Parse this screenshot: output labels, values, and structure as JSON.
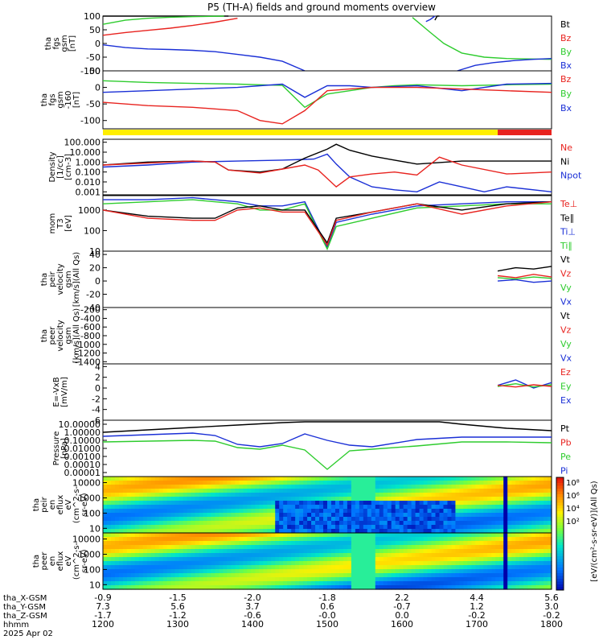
{
  "title": "P5 (TH-A) fields and ground moments overview",
  "colors": {
    "black": "#000000",
    "red": "#e8231f",
    "green": "#2ecc2e",
    "blue": "#1a2fd6",
    "yellow": "#ffee00"
  },
  "chart_data": [
    {
      "type": "line",
      "ylabel": [
        "tha",
        "fgs",
        "gsm",
        "[nT]"
      ],
      "ylim": [
        -100,
        100
      ],
      "ticks": [
        "100",
        "50",
        "0",
        "-50",
        "-100"
      ],
      "tick_values": [
        100,
        50,
        0,
        -50,
        -100
      ],
      "legend": [
        "Bt",
        "Bz",
        "By",
        "Bx"
      ],
      "legend_colors": [
        "black",
        "red",
        "green",
        "blue"
      ],
      "series": [
        {
          "color": "black",
          "x": [
            0,
            0.04,
            0.1,
            0.2,
            0.28
          ],
          "y": [
            100,
            104,
            105,
            106,
            107
          ]
        },
        {
          "color": "red",
          "x": [
            0,
            0.05,
            0.1,
            0.15,
            0.2,
            0.25,
            0.3
          ],
          "y": [
            30,
            40,
            48,
            56,
            66,
            78,
            92
          ]
        },
        {
          "color": "green",
          "x": [
            0,
            0.05,
            0.1,
            0.15,
            0.2,
            0.27
          ],
          "y": [
            70,
            85,
            92,
            96,
            98,
            100
          ]
        },
        {
          "color": "blue",
          "x": [
            0,
            0.05,
            0.1,
            0.15,
            0.2,
            0.25,
            0.3,
            0.35,
            0.4,
            0.45
          ],
          "y": [
            -5,
            -15,
            -20,
            -22,
            -25,
            -30,
            -40,
            -50,
            -65,
            -100
          ]
        },
        {
          "color": "green",
          "x": [
            0.69,
            0.73,
            0.76,
            0.8,
            0.85,
            0.9,
            1
          ],
          "y": [
            95,
            40,
            0,
            -35,
            -50,
            -55,
            -58
          ]
        },
        {
          "color": "blue",
          "x": [
            0.79,
            0.83,
            0.87,
            0.92,
            0.96,
            1
          ],
          "y": [
            -100,
            -80,
            -70,
            -62,
            -58,
            -55
          ]
        },
        {
          "color": "blue",
          "x": [
            0.72,
            0.73,
            0.74
          ],
          "y": [
            80,
            88,
            100
          ]
        },
        {
          "color": "black",
          "x": [
            0.74,
            0.745,
            0.75
          ],
          "y": [
            85,
            100,
            110
          ]
        }
      ]
    },
    {
      "type": "line",
      "ylabel": [
        "tha",
        "fgs",
        "gsm",
        "-160",
        "[nT]"
      ],
      "ylim": [
        -125,
        50
      ],
      "ticks": [
        "50",
        "0",
        "-50",
        "-100"
      ],
      "tick_values": [
        50,
        0,
        -50,
        -100
      ],
      "legend": [
        "Bz",
        "By",
        "Bx"
      ],
      "legend_colors": [
        "red",
        "green",
        "blue"
      ],
      "series": [
        {
          "color": "green",
          "x": [
            0,
            0.1,
            0.2,
            0.3,
            0.35,
            0.4,
            0.45,
            0.5,
            0.55,
            0.6,
            0.65,
            0.7,
            0.8,
            0.9,
            1
          ],
          "y": [
            20,
            15,
            12,
            10,
            8,
            6,
            -60,
            -20,
            -10,
            0,
            5,
            8,
            5,
            8,
            10
          ]
        },
        {
          "color": "blue",
          "x": [
            0,
            0.1,
            0.2,
            0.3,
            0.35,
            0.4,
            0.45,
            0.5,
            0.55,
            0.6,
            0.7,
            0.8,
            0.9,
            1
          ],
          "y": [
            -15,
            -10,
            -5,
            0,
            5,
            10,
            -30,
            5,
            5,
            0,
            5,
            -10,
            10,
            12
          ]
        },
        {
          "color": "red",
          "x": [
            0,
            0.1,
            0.2,
            0.3,
            0.35,
            0.4,
            0.45,
            0.5,
            0.55,
            0.6,
            0.7,
            0.8,
            0.9,
            1
          ],
          "y": [
            -45,
            -55,
            -60,
            -70,
            -100,
            -110,
            -70,
            -10,
            -5,
            0,
            0,
            -5,
            -10,
            -15
          ]
        }
      ]
    },
    {
      "type": "heatmap",
      "bar": [
        [
          "yellow",
          0,
          0.88
        ],
        [
          "red",
          0.88,
          1
        ]
      ]
    },
    {
      "type": "line",
      "ylabel": [
        "Density",
        "[1/cc]",
        "[cm-3]"
      ],
      "ylim": [
        -3.3,
        2.3
      ],
      "log": true,
      "ticks": [
        "100.000",
        "10.000",
        "1.000",
        "0.100",
        "0.010",
        "0.001"
      ],
      "tick_values": [
        2,
        1,
        0,
        -1,
        -2,
        -3
      ],
      "legend": [
        "Ne",
        "Ni",
        "Npot"
      ],
      "legend_colors": [
        "red",
        "black",
        "blue"
      ],
      "series": [
        {
          "color": "blue",
          "x": [
            0,
            0.1,
            0.2,
            0.3,
            0.4,
            0.47,
            0.5,
            0.52,
            0.55,
            0.6,
            0.65,
            0.7,
            0.75,
            0.8,
            0.85,
            0.9,
            1
          ],
          "y": [
            -0.5,
            -0.3,
            0,
            0.1,
            0.2,
            0.3,
            0.8,
            -0.2,
            -1.5,
            -2.5,
            -2.8,
            -3,
            -2,
            -2.5,
            -3,
            -2.5,
            -3
          ]
        },
        {
          "color": "black",
          "x": [
            0,
            0.1,
            0.2,
            0.25,
            0.28,
            0.35,
            0.4,
            0.45,
            0.5,
            0.52,
            0.55,
            0.6,
            0.65,
            0.7,
            0.8,
            0.9,
            1
          ],
          "y": [
            -0.3,
            0,
            0.1,
            0,
            -0.8,
            -1,
            -0.7,
            0.4,
            1.3,
            1.8,
            1.2,
            0.6,
            0.2,
            -0.2,
            0.1,
            0.1,
            0.1
          ]
        },
        {
          "color": "red",
          "x": [
            0,
            0.1,
            0.2,
            0.25,
            0.28,
            0.35,
            0.4,
            0.45,
            0.48,
            0.52,
            0.55,
            0.6,
            0.65,
            0.7,
            0.75,
            0.8,
            0.9,
            1
          ],
          "y": [
            -0.3,
            -0.1,
            0.1,
            0,
            -0.8,
            -1.1,
            -0.7,
            -0.3,
            -0.8,
            -2.5,
            -1.5,
            -1.2,
            -1,
            -1.3,
            0.5,
            -0.3,
            -1.2,
            -1
          ]
        }
      ]
    },
    {
      "type": "line",
      "ylabel": [
        "mom",
        "T3",
        "[eV]"
      ],
      "ylim": [
        1,
        3.7
      ],
      "log": true,
      "ticks": [
        "1000",
        "100",
        "10"
      ],
      "tick_values": [
        3,
        2,
        1
      ],
      "legend": [
        "Te⊥",
        "Te∥",
        "Ti⊥",
        "Ti∥"
      ],
      "legend_colors": [
        "red",
        "black",
        "blue",
        "green"
      ],
      "series": [
        {
          "color": "blue",
          "x": [
            0,
            0.1,
            0.2,
            0.3,
            0.35,
            0.4,
            0.45,
            0.5,
            0.52,
            0.6,
            0.7,
            0.8,
            0.9,
            1
          ],
          "y": [
            3.5,
            3.5,
            3.6,
            3.4,
            3.2,
            3.2,
            3.4,
            1.2,
            2.4,
            2.8,
            3.2,
            3.3,
            3.4,
            3.4
          ]
        },
        {
          "color": "green",
          "x": [
            0,
            0.1,
            0.2,
            0.3,
            0.35,
            0.4,
            0.45,
            0.5,
            0.52,
            0.6,
            0.7,
            0.8,
            0.9,
            1
          ],
          "y": [
            3.3,
            3.4,
            3.5,
            3.3,
            3.0,
            3.0,
            3.3,
            1.1,
            2.2,
            2.6,
            3.1,
            3.2,
            3.3,
            3.3
          ]
        },
        {
          "color": "black",
          "x": [
            0,
            0.1,
            0.2,
            0.25,
            0.3,
            0.35,
            0.4,
            0.45,
            0.5,
            0.52,
            0.6,
            0.7,
            0.8,
            0.9,
            1
          ],
          "y": [
            3.0,
            2.7,
            2.6,
            2.6,
            3.1,
            3.2,
            3.0,
            3.0,
            1.4,
            2.6,
            2.9,
            3.3,
            3.0,
            3.3,
            3.4
          ]
        },
        {
          "color": "red",
          "x": [
            0,
            0.1,
            0.2,
            0.25,
            0.3,
            0.35,
            0.4,
            0.45,
            0.5,
            0.52,
            0.6,
            0.7,
            0.8,
            0.9,
            1
          ],
          "y": [
            3.0,
            2.6,
            2.5,
            2.5,
            3.0,
            3.1,
            2.9,
            2.9,
            1.3,
            2.5,
            2.9,
            3.3,
            2.8,
            3.2,
            3.4
          ]
        }
      ]
    },
    {
      "type": "line",
      "ylabel": [
        "tha",
        "peir",
        "velocity",
        "gsm",
        "[km/s](All Qs)"
      ],
      "ylim": [
        -40,
        45
      ],
      "ticks": [
        "40",
        "20",
        "0",
        "-20",
        "-40"
      ],
      "tick_values": [
        40,
        20,
        0,
        -20,
        -40
      ],
      "legend": [
        "Vt",
        "Vz",
        "Vy",
        "Vx"
      ],
      "legend_colors": [
        "black",
        "red",
        "green",
        "blue"
      ],
      "series": [
        {
          "color": "black",
          "x": [
            0.88,
            0.92,
            0.96,
            1
          ],
          "y": [
            15,
            20,
            18,
            22
          ]
        },
        {
          "color": "blue",
          "x": [
            0.88,
            0.92,
            0.96,
            1
          ],
          "y": [
            0,
            2,
            -2,
            0
          ]
        },
        {
          "color": "green",
          "x": [
            0.88,
            0.92,
            0.96,
            1
          ],
          "y": [
            5,
            3,
            6,
            4
          ]
        },
        {
          "color": "red",
          "x": [
            0.88,
            0.92,
            0.96,
            1
          ],
          "y": [
            8,
            5,
            10,
            6
          ]
        }
      ]
    },
    {
      "type": "line",
      "ylabel": [
        "tha",
        "peer",
        "velocity",
        "gsm",
        "[km/s](All Qs)"
      ],
      "ylim": [
        -1450,
        -150
      ],
      "ticks": [
        "-200",
        "-400",
        "-600",
        "-800",
        "-1000",
        "-1200",
        "-1400"
      ],
      "tick_values": [
        -200,
        -400,
        -600,
        -800,
        -1000,
        -1200,
        -1400
      ],
      "legend": [
        "Vt",
        "Vz",
        "Vy",
        "Vx"
      ],
      "legend_colors": [
        "black",
        "red",
        "green",
        "blue"
      ],
      "series": []
    },
    {
      "type": "line",
      "ylabel": [
        "E=-VxB",
        "[mV/m]"
      ],
      "ylim": [
        -6,
        4.5
      ],
      "ticks": [
        "4",
        "2",
        "0",
        "-2",
        "-4",
        "-6"
      ],
      "tick_values": [
        4,
        2,
        0,
        -2,
        -4,
        -6
      ],
      "legend": [
        "Ez",
        "Ey",
        "Ex"
      ],
      "legend_colors": [
        "red",
        "green",
        "blue"
      ],
      "series": [
        {
          "color": "blue",
          "x": [
            0.88,
            0.92,
            0.96,
            1
          ],
          "y": [
            0.5,
            1.5,
            0,
            1
          ]
        },
        {
          "color": "green",
          "x": [
            0.88,
            0.92,
            0.96,
            1
          ],
          "y": [
            0.3,
            0.8,
            0.2,
            0.6
          ]
        },
        {
          "color": "red",
          "x": [
            0.88,
            0.92,
            0.96,
            1
          ],
          "y": [
            0.5,
            0.2,
            0.6,
            0.3
          ]
        }
      ]
    },
    {
      "type": "line",
      "ylabel": [
        "Pressure",
        "[nPa]"
      ],
      "ylim": [
        -5.5,
        1.5
      ],
      "log": true,
      "ticks": [
        "10.00000",
        "1.00000",
        "0.10000",
        "0.01000",
        "0.00100",
        "0.00010",
        "0.00001"
      ],
      "tick_values": [
        1,
        0,
        -1,
        -2,
        -3,
        -4,
        -5
      ],
      "legend": [
        "Pt",
        "Pb",
        "Pe",
        "Pi"
      ],
      "legend_colors": [
        "black",
        "red",
        "green",
        "blue"
      ],
      "series": [
        {
          "color": "black",
          "x": [
            0,
            0.1,
            0.2,
            0.3,
            0.4,
            0.45,
            0.75,
            0.8,
            0.9,
            1
          ],
          "y": [
            0,
            0.3,
            0.6,
            0.9,
            1.2,
            1.3,
            1.3,
            1.0,
            0.5,
            0.2
          ]
        },
        {
          "color": "blue",
          "x": [
            0,
            0.1,
            0.2,
            0.25,
            0.3,
            0.35,
            0.4,
            0.45,
            0.5,
            0.55,
            0.6,
            0.7,
            0.8,
            0.9,
            1
          ],
          "y": [
            -0.5,
            -0.3,
            -0.1,
            -0.4,
            -1.5,
            -1.8,
            -1.4,
            -0.2,
            -1,
            -1.6,
            -1.8,
            -0.9,
            -0.6,
            -0.6,
            -0.6
          ]
        },
        {
          "color": "green",
          "x": [
            0,
            0.1,
            0.2,
            0.25,
            0.3,
            0.35,
            0.4,
            0.45,
            0.5,
            0.55,
            0.6,
            0.7,
            0.8,
            0.9,
            1
          ],
          "y": [
            -1.2,
            -1.1,
            -1.0,
            -1.1,
            -1.9,
            -2.1,
            -1.6,
            -2.2,
            -4.6,
            -2.3,
            -2.1,
            -1.7,
            -1.2,
            -1.2,
            -1.3
          ]
        }
      ]
    },
    {
      "type": "heatmap",
      "ylabel": [
        "tha",
        "peir",
        "en",
        "eflux",
        "eV",
        "(cm^2-s-",
        "sr-eV)"
      ],
      "ticks": [
        "10000",
        "1000",
        "100",
        "10"
      ],
      "tick_values": [
        4,
        3,
        2,
        1
      ]
    },
    {
      "type": "heatmap",
      "ylabel": [
        "tha",
        "peer",
        "en",
        "eflux",
        "eV",
        "(cm^2-s-",
        "sr-eV)"
      ],
      "ticks": [
        "10000",
        "1000",
        "100",
        "10"
      ],
      "tick_values": [
        4,
        3,
        2,
        1
      ]
    }
  ],
  "colorbar": {
    "ticks": [
      "10⁸",
      "10⁶",
      "10⁴",
      "10²"
    ],
    "label": "[eV/(cm²-s-sr-eV)](All Qs)"
  },
  "xaxis": {
    "rows": [
      {
        "label": "tha_X-GSM",
        "values": [
          "-0.9",
          "-1.5",
          "-2.0",
          "-1.8",
          "2.2",
          "4.4",
          "5.6"
        ]
      },
      {
        "label": "tha_Y-GSM",
        "values": [
          "7.3",
          "5.6",
          "3.7",
          "0.6",
          "-0.7",
          "1.2",
          "3.0"
        ]
      },
      {
        "label": "tha_Z-GSM",
        "values": [
          "-1.7",
          "-1.2",
          "-0.6",
          "-0.0",
          "0.0",
          "-0.2",
          "-0.2"
        ]
      },
      {
        "label": "hhmm",
        "values": [
          "1200",
          "1300",
          "1400",
          "1500",
          "1600",
          "1700",
          "1800"
        ]
      }
    ],
    "date": "2025 Apr 02"
  }
}
